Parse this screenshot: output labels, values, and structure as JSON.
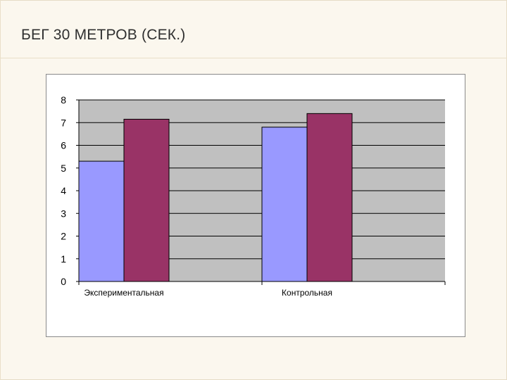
{
  "slide": {
    "title": "БЕГ 30 МЕТРОВ (СЕК.)"
  },
  "chart_data": {
    "type": "bar",
    "title": "",
    "xlabel": "",
    "ylabel": "",
    "categories": [
      "Экспериментальная",
      "Контрольная"
    ],
    "series": [
      {
        "values": [
          5.3,
          6.8
        ],
        "color": "#9999ff"
      },
      {
        "values": [
          7.15,
          7.4
        ],
        "color": "#993366"
      }
    ],
    "ylim": [
      0,
      8
    ],
    "yticks": [
      "0",
      "1",
      "2",
      "3",
      "4",
      "5",
      "6",
      "7",
      "8"
    ],
    "grid": true,
    "plot_background": "#c0c0c0",
    "legend": "none"
  }
}
